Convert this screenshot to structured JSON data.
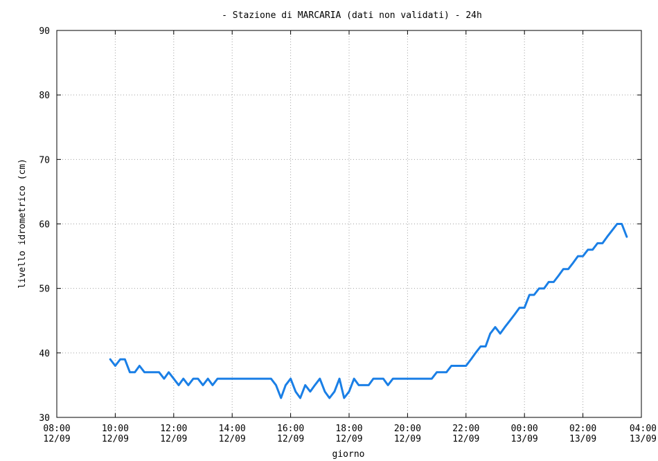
{
  "chart_data": {
    "type": "line",
    "title": "- Stazione di MARCARIA (dati non validati) - 24h",
    "xlabel": "giorno",
    "ylabel": "livello idrometrico (cm)",
    "ylim": [
      30,
      90
    ],
    "yticks": [
      30,
      40,
      50,
      60,
      70,
      80,
      90
    ],
    "xlim_hours": [
      8,
      28
    ],
    "xticks": [
      {
        "h": 8,
        "time": "08:00",
        "date": "12/09"
      },
      {
        "h": 10,
        "time": "10:00",
        "date": "12/09"
      },
      {
        "h": 12,
        "time": "12:00",
        "date": "12/09"
      },
      {
        "h": 14,
        "time": "14:00",
        "date": "12/09"
      },
      {
        "h": 16,
        "time": "16:00",
        "date": "12/09"
      },
      {
        "h": 18,
        "time": "18:00",
        "date": "12/09"
      },
      {
        "h": 20,
        "time": "20:00",
        "date": "12/09"
      },
      {
        "h": 22,
        "time": "22:00",
        "date": "12/09"
      },
      {
        "h": 24,
        "time": "00:00",
        "date": "13/09"
      },
      {
        "h": 26,
        "time": "02:00",
        "date": "13/09"
      },
      {
        "h": 28,
        "time": "04:00",
        "date": "13/09"
      }
    ],
    "grid": true,
    "series": [
      {
        "color": "#1a7fe6",
        "points": [
          [
            9.83,
            39
          ],
          [
            10.0,
            38
          ],
          [
            10.17,
            39
          ],
          [
            10.33,
            39
          ],
          [
            10.5,
            37
          ],
          [
            10.67,
            37
          ],
          [
            10.83,
            38
          ],
          [
            11.0,
            37
          ],
          [
            11.17,
            37
          ],
          [
            11.33,
            37
          ],
          [
            11.5,
            37
          ],
          [
            11.67,
            36
          ],
          [
            11.83,
            37
          ],
          [
            12.0,
            36
          ],
          [
            12.17,
            35
          ],
          [
            12.33,
            36
          ],
          [
            12.5,
            35
          ],
          [
            12.67,
            36
          ],
          [
            12.83,
            36
          ],
          [
            13.0,
            35
          ],
          [
            13.17,
            36
          ],
          [
            13.33,
            35
          ],
          [
            13.5,
            36
          ],
          [
            13.67,
            36
          ],
          [
            13.83,
            36
          ],
          [
            14.0,
            36
          ],
          [
            14.17,
            36
          ],
          [
            14.33,
            36
          ],
          [
            14.5,
            36
          ],
          [
            14.67,
            36
          ],
          [
            14.83,
            36
          ],
          [
            15.0,
            36
          ],
          [
            15.17,
            36
          ],
          [
            15.33,
            36
          ],
          [
            15.5,
            35
          ],
          [
            15.67,
            33
          ],
          [
            15.83,
            35
          ],
          [
            16.0,
            36
          ],
          [
            16.17,
            34
          ],
          [
            16.33,
            33
          ],
          [
            16.5,
            35
          ],
          [
            16.67,
            34
          ],
          [
            16.83,
            35
          ],
          [
            17.0,
            36
          ],
          [
            17.17,
            34
          ],
          [
            17.33,
            33
          ],
          [
            17.5,
            34
          ],
          [
            17.67,
            36
          ],
          [
            17.83,
            33
          ],
          [
            18.0,
            34
          ],
          [
            18.17,
            36
          ],
          [
            18.33,
            35
          ],
          [
            18.5,
            35
          ],
          [
            18.67,
            35
          ],
          [
            18.83,
            36
          ],
          [
            19.0,
            36
          ],
          [
            19.17,
            36
          ],
          [
            19.33,
            35
          ],
          [
            19.5,
            36
          ],
          [
            19.67,
            36
          ],
          [
            19.83,
            36
          ],
          [
            20.0,
            36
          ],
          [
            20.17,
            36
          ],
          [
            20.33,
            36
          ],
          [
            20.5,
            36
          ],
          [
            20.67,
            36
          ],
          [
            20.83,
            36
          ],
          [
            21.0,
            37
          ],
          [
            21.17,
            37
          ],
          [
            21.33,
            37
          ],
          [
            21.5,
            38
          ],
          [
            21.67,
            38
          ],
          [
            21.83,
            38
          ],
          [
            22.0,
            38
          ],
          [
            22.17,
            39
          ],
          [
            22.33,
            40
          ],
          [
            22.5,
            41
          ],
          [
            22.67,
            41
          ],
          [
            22.83,
            43
          ],
          [
            23.0,
            44
          ],
          [
            23.17,
            43
          ],
          [
            23.33,
            44
          ],
          [
            23.5,
            45
          ],
          [
            23.67,
            46
          ],
          [
            23.83,
            47
          ],
          [
            24.0,
            47
          ],
          [
            24.17,
            49
          ],
          [
            24.33,
            49
          ],
          [
            24.5,
            50
          ],
          [
            24.67,
            50
          ],
          [
            24.83,
            51
          ],
          [
            25.0,
            51
          ],
          [
            25.17,
            52
          ],
          [
            25.33,
            53
          ],
          [
            25.5,
            53
          ],
          [
            25.67,
            54
          ],
          [
            25.83,
            55
          ],
          [
            26.0,
            55
          ],
          [
            26.17,
            56
          ],
          [
            26.33,
            56
          ],
          [
            26.5,
            57
          ],
          [
            26.67,
            57
          ],
          [
            26.83,
            58
          ],
          [
            27.0,
            59
          ],
          [
            27.17,
            60
          ],
          [
            27.33,
            60
          ],
          [
            27.5,
            58
          ]
        ]
      }
    ]
  }
}
